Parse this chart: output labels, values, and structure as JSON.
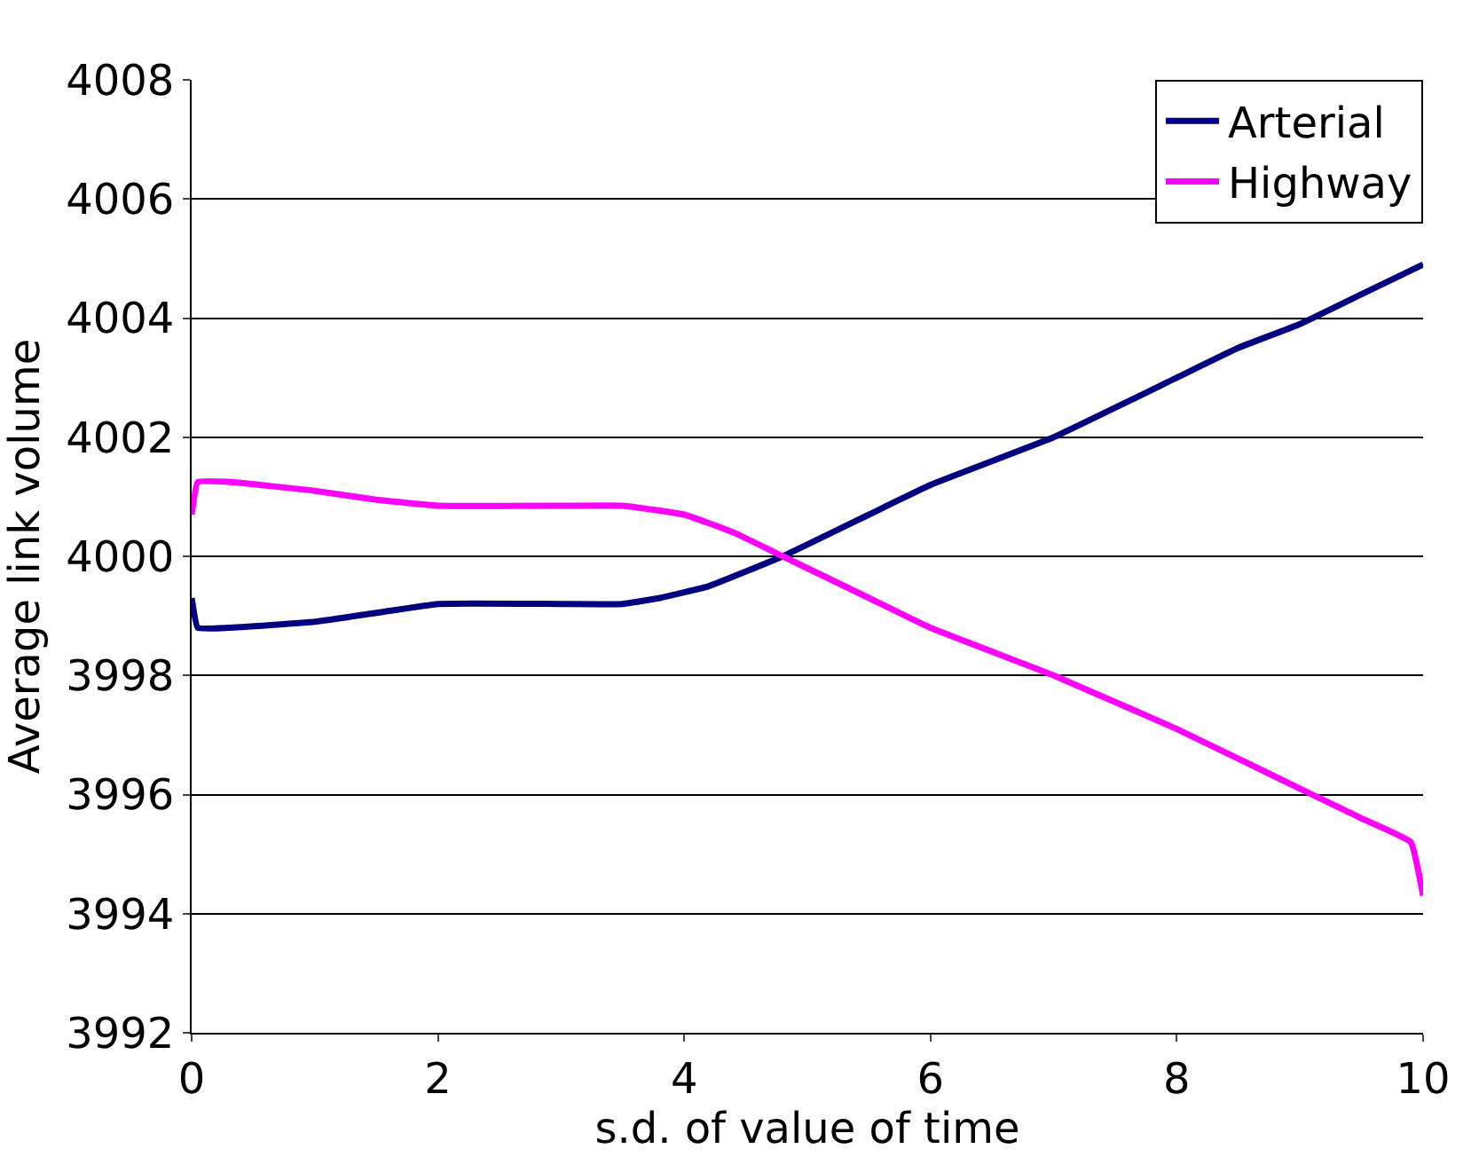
{
  "chart_data": {
    "type": "line",
    "xlabel": "s.d. of value of time",
    "ylabel": "Average link volume",
    "xlim": [
      0,
      10
    ],
    "xticks": [
      0,
      2,
      4,
      6,
      8,
      10
    ],
    "ylim": [
      3992,
      4008
    ],
    "yticks": [
      3992,
      3994,
      3996,
      3998,
      4000,
      4002,
      4004,
      4006,
      4008
    ],
    "grid": "y",
    "legend": "top right",
    "marker": "none",
    "line_style": "solid",
    "series": [
      {
        "name": "Arterial",
        "color": "#000080",
        "x": [
          0,
          0.05,
          0.3,
          1,
          1.5,
          2,
          3,
          3.5,
          3.8,
          4.2,
          4.8,
          5.5,
          6,
          7,
          8,
          8.5,
          9,
          9.5,
          10
        ],
        "values": [
          3999.3,
          3998.8,
          3998.8,
          3998.9,
          3999.05,
          3999.2,
          3999.2,
          3999.2,
          3999.3,
          3999.5,
          4000,
          4000.7,
          4001.2,
          4002,
          4003,
          4003.5,
          4003.9,
          4004.4,
          4004.9
        ]
      },
      {
        "name": "Highway",
        "color": "#ff00ff",
        "x": [
          0,
          0.05,
          0.3,
          1,
          1.5,
          2,
          3,
          3.5,
          4,
          4.4,
          4.8,
          5.5,
          6,
          7,
          8,
          8.5,
          9,
          9.5,
          9.9,
          10
        ],
        "values": [
          4000.7,
          4001.25,
          4001.25,
          4001.1,
          4000.95,
          4000.85,
          4000.85,
          4000.85,
          4000.7,
          4000.4,
          4000,
          3999.3,
          3998.8,
          3998,
          3997.1,
          3996.6,
          3996.1,
          3995.6,
          3995.2,
          3994.3
        ]
      }
    ]
  }
}
